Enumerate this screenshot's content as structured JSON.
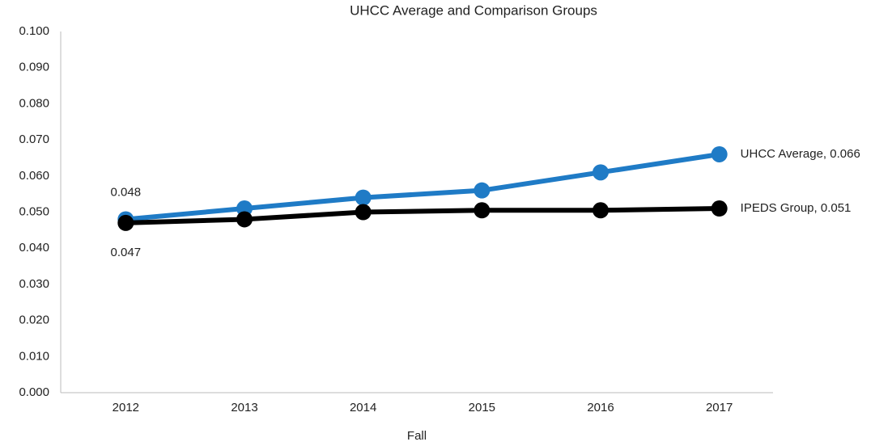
{
  "chart_data": {
    "type": "line",
    "title": "UHCC Average and Comparison Groups",
    "x_label": "Fall",
    "categories": [
      "2012",
      "2013",
      "2014",
      "2015",
      "2016",
      "2017"
    ],
    "series": [
      {
        "name": "UHCC Average",
        "color": "#1f7bc6",
        "values": [
          0.048,
          0.051,
          0.054,
          0.056,
          0.061,
          0.066
        ],
        "value_labels": [
          "0.048",
          null,
          null,
          null,
          null,
          "UHCC Average, 0.066"
        ]
      },
      {
        "name": "IPEDS Group",
        "color": "#000000",
        "values": [
          0.047,
          0.048,
          0.05,
          0.0505,
          0.0505,
          0.051
        ],
        "value_labels": [
          "0.047",
          null,
          null,
          null,
          null,
          "IPEDS Group, 0.051"
        ]
      }
    ],
    "ylim": [
      0,
      0.1
    ],
    "yticks": [
      {
        "value": 0,
        "label": "0.000"
      },
      {
        "value": 0.01,
        "label": "0.010"
      },
      {
        "value": 0.02,
        "label": "0.020"
      },
      {
        "value": 0.03,
        "label": "0.030"
      },
      {
        "value": 0.04,
        "label": "0.040"
      },
      {
        "value": 0.05,
        "label": "0.050"
      },
      {
        "value": 0.06,
        "label": "0.060"
      },
      {
        "value": 0.07,
        "label": "0.070"
      },
      {
        "value": 0.08,
        "label": "0.080"
      },
      {
        "value": 0.09,
        "label": "0.090"
      },
      {
        "value": 0.1,
        "label": "0.100"
      }
    ],
    "grid": false
  }
}
